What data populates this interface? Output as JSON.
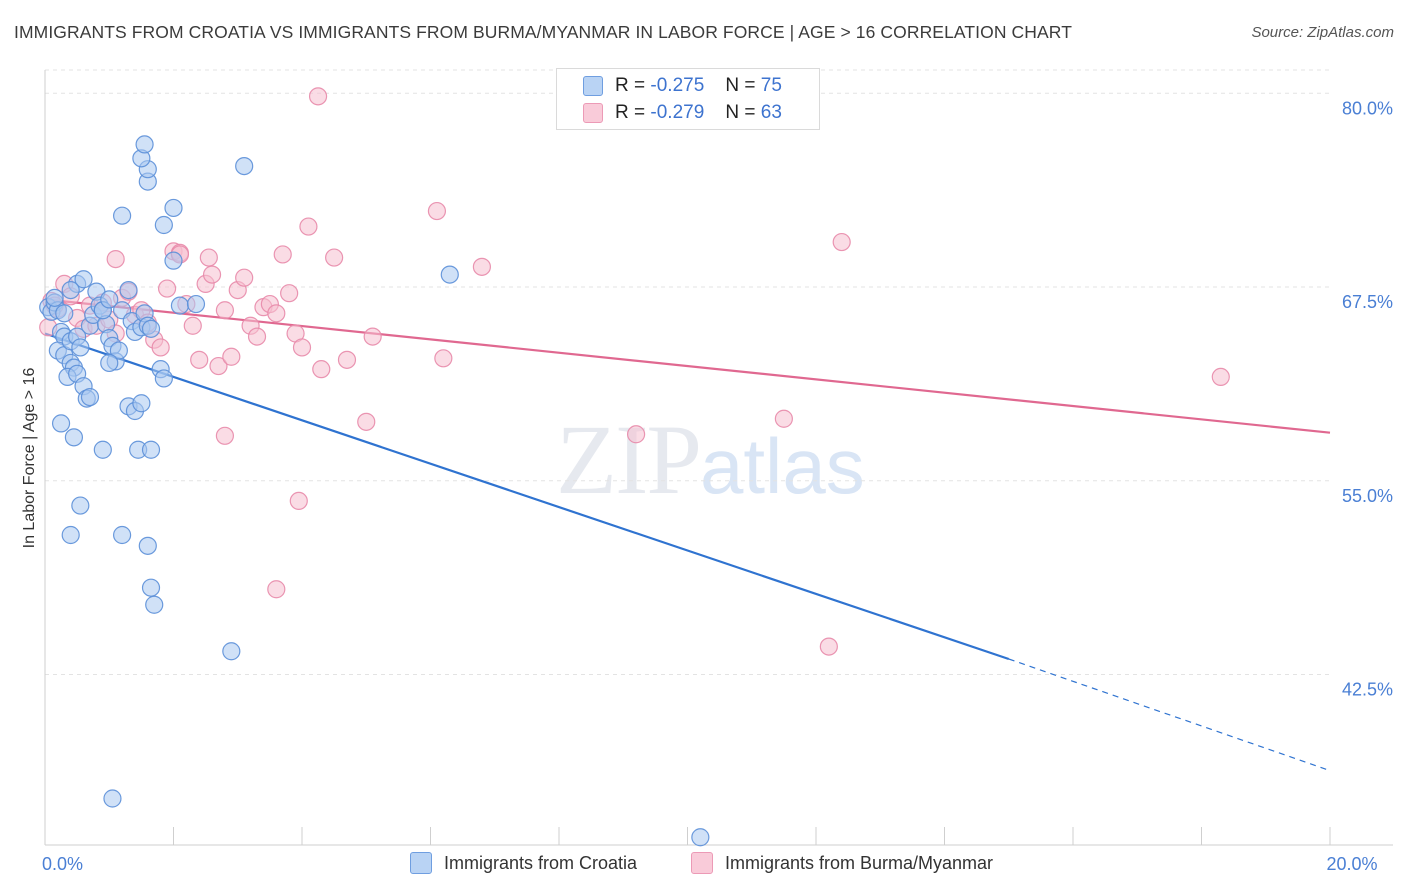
{
  "header": {
    "title": "IMMIGRANTS FROM CROATIA VS IMMIGRANTS FROM BURMA/MYANMAR IN LABOR FORCE | AGE > 16 CORRELATION CHART",
    "source": "Source: ZipAtlas.com"
  },
  "watermark": {
    "zip": "ZIP",
    "atlas": "atlas"
  },
  "legend": {
    "r_label": "R =",
    "n_label": "N =",
    "series": [
      {
        "r": "-0.275",
        "n": "75"
      },
      {
        "r": "-0.279",
        "n": "63"
      }
    ]
  },
  "chart_data": {
    "type": "scatter",
    "title": "IMMIGRANTS FROM CROATIA VS IMMIGRANTS FROM BURMA/MYANMAR IN LABOR FORCE | AGE > 16 CORRELATION CHART",
    "xlabel": "",
    "ylabel": "In Labor Force | Age > 16",
    "xlim": [
      0,
      20
    ],
    "ylim": [
      31.5,
      81.5
    ],
    "x_tick_labels": [
      "0.0%",
      "20.0%"
    ],
    "x_tick_labels_values": [
      0,
      20
    ],
    "y_ticks": [
      42.5,
      55.0,
      67.5,
      80.0
    ],
    "y_tick_labels": [
      "42.5%",
      "55.0%",
      "67.5%",
      "80.0%"
    ],
    "x_minor_ticks": [
      0,
      2,
      4,
      6,
      8,
      10,
      12,
      14,
      16,
      18,
      20
    ],
    "grid": true,
    "colors": {
      "croatia_fill": "#a9c8f0",
      "croatia_stroke": "#5b8fd8",
      "croatia_line": "#2f73d0",
      "burma_fill": "#f6bfd0",
      "burma_stroke": "#e88aaa",
      "burma_line": "#e06890"
    },
    "series": [
      {
        "name": "Immigrants from Croatia",
        "r": -0.275,
        "n": 75,
        "trend": {
          "x0": 0.0,
          "y0": 64.5,
          "x1": 15.0,
          "y1": 43.5,
          "dash_x1": 20.0,
          "dash_y1": 36.3
        },
        "points": [
          [
            0.05,
            66.2
          ],
          [
            0.1,
            65.9
          ],
          [
            0.15,
            66.5
          ],
          [
            0.2,
            66.0
          ],
          [
            0.25,
            64.6
          ],
          [
            0.3,
            64.3
          ],
          [
            0.2,
            63.4
          ],
          [
            0.3,
            63.1
          ],
          [
            0.4,
            62.6
          ],
          [
            0.45,
            62.3
          ],
          [
            0.35,
            61.7
          ],
          [
            0.5,
            61.9
          ],
          [
            0.6,
            61.1
          ],
          [
            0.65,
            60.3
          ],
          [
            0.7,
            60.4
          ],
          [
            0.4,
            64.0
          ],
          [
            0.5,
            64.3
          ],
          [
            0.55,
            63.6
          ],
          [
            0.7,
            65.0
          ],
          [
            0.75,
            65.7
          ],
          [
            0.8,
            67.2
          ],
          [
            0.85,
            66.3
          ],
          [
            0.9,
            66.0
          ],
          [
            0.95,
            65.1
          ],
          [
            1.0,
            64.2
          ],
          [
            1.05,
            63.7
          ],
          [
            1.1,
            62.7
          ],
          [
            1.15,
            63.4
          ],
          [
            1.2,
            66.0
          ],
          [
            1.3,
            67.3
          ],
          [
            1.35,
            65.3
          ],
          [
            1.4,
            64.6
          ],
          [
            1.5,
            64.9
          ],
          [
            1.55,
            65.8
          ],
          [
            1.6,
            65.0
          ],
          [
            1.65,
            64.8
          ],
          [
            0.25,
            58.7
          ],
          [
            0.45,
            57.8
          ],
          [
            0.9,
            57.0
          ],
          [
            1.0,
            62.6
          ],
          [
            1.3,
            59.8
          ],
          [
            1.4,
            59.5
          ],
          [
            1.45,
            57.0
          ],
          [
            1.65,
            57.0
          ],
          [
            1.8,
            62.2
          ],
          [
            1.85,
            61.6
          ],
          [
            2.0,
            69.2
          ],
          [
            2.0,
            72.6
          ],
          [
            2.1,
            66.3
          ],
          [
            2.35,
            66.4
          ],
          [
            1.5,
            60.0
          ],
          [
            0.55,
            53.4
          ],
          [
            0.4,
            51.5
          ],
          [
            1.2,
            51.5
          ],
          [
            1.6,
            50.8
          ],
          [
            1.65,
            48.1
          ],
          [
            1.7,
            47.0
          ],
          [
            2.9,
            44.0
          ],
          [
            1.05,
            34.5
          ],
          [
            1.2,
            72.1
          ],
          [
            1.85,
            71.5
          ],
          [
            1.6,
            74.3
          ],
          [
            1.6,
            75.1
          ],
          [
            1.5,
            75.8
          ],
          [
            1.55,
            76.7
          ],
          [
            3.1,
            75.3
          ],
          [
            6.3,
            68.3
          ],
          [
            10.2,
            32.0
          ],
          [
            0.5,
            67.7
          ],
          [
            0.6,
            68.0
          ],
          [
            0.15,
            66.8
          ],
          [
            0.3,
            65.8
          ],
          [
            0.4,
            67.3
          ],
          [
            0.9,
            66.0
          ],
          [
            1.0,
            66.7
          ]
        ]
      },
      {
        "name": "Immigrants from Burma/Myanmar",
        "r": -0.279,
        "n": 63,
        "trend": {
          "x0": 0.0,
          "y0": 66.7,
          "x1": 20.0,
          "y1": 58.1
        },
        "points": [
          [
            0.1,
            66.6
          ],
          [
            0.2,
            66.1
          ],
          [
            0.3,
            67.7
          ],
          [
            0.4,
            66.9
          ],
          [
            0.5,
            65.5
          ],
          [
            0.6,
            64.8
          ],
          [
            0.7,
            66.3
          ],
          [
            0.8,
            65.0
          ],
          [
            0.9,
            66.5
          ],
          [
            1.0,
            65.4
          ],
          [
            1.1,
            64.5
          ],
          [
            1.2,
            66.8
          ],
          [
            1.3,
            67.2
          ],
          [
            1.4,
            65.7
          ],
          [
            1.5,
            66.0
          ],
          [
            1.6,
            65.2
          ],
          [
            1.7,
            64.1
          ],
          [
            1.8,
            63.6
          ],
          [
            1.9,
            67.4
          ],
          [
            2.0,
            69.8
          ],
          [
            2.1,
            69.7
          ],
          [
            2.2,
            66.4
          ],
          [
            2.3,
            65.0
          ],
          [
            2.4,
            62.8
          ],
          [
            2.5,
            67.7
          ],
          [
            2.55,
            69.4
          ],
          [
            2.6,
            68.3
          ],
          [
            2.7,
            62.4
          ],
          [
            2.8,
            66.0
          ],
          [
            2.9,
            63.0
          ],
          [
            3.0,
            67.3
          ],
          [
            3.1,
            68.1
          ],
          [
            3.2,
            65.0
          ],
          [
            3.3,
            64.3
          ],
          [
            3.4,
            66.2
          ],
          [
            3.5,
            66.4
          ],
          [
            3.6,
            65.8
          ],
          [
            3.7,
            69.6
          ],
          [
            3.8,
            67.1
          ],
          [
            3.9,
            64.5
          ],
          [
            4.0,
            63.6
          ],
          [
            4.1,
            71.4
          ],
          [
            4.3,
            62.2
          ],
          [
            4.5,
            69.4
          ],
          [
            4.7,
            62.8
          ],
          [
            5.0,
            58.8
          ],
          [
            5.1,
            64.3
          ],
          [
            6.1,
            72.4
          ],
          [
            6.2,
            62.9
          ],
          [
            6.8,
            68.8
          ],
          [
            9.2,
            58.0
          ],
          [
            11.5,
            59.0
          ],
          [
            12.2,
            44.3
          ],
          [
            12.4,
            70.4
          ],
          [
            18.3,
            61.7
          ],
          [
            4.25,
            79.8
          ],
          [
            3.6,
            48.0
          ],
          [
            2.8,
            57.9
          ],
          [
            3.95,
            53.7
          ],
          [
            1.1,
            69.3
          ],
          [
            2.1,
            69.6
          ],
          [
            0.05,
            64.9
          ],
          [
            0.15,
            66.3
          ]
        ]
      }
    ]
  },
  "bottom_legend": [
    {
      "label": "Immigrants from Croatia"
    },
    {
      "label": "Immigrants from Burma/Myanmar"
    }
  ]
}
